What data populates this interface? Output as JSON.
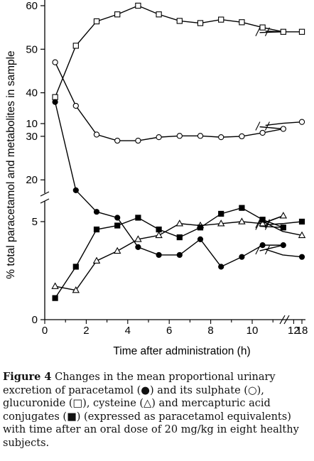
{
  "chart_data": {
    "type": "line",
    "xlabel": "Time after administration (h)",
    "ylabel": "% total paracetamol and metabolites in sample",
    "x_ticks": [
      "0",
      "2",
      "4",
      "6",
      "8",
      "10",
      "12",
      "18"
    ],
    "y_ticks_upper": [
      "20",
      "30",
      "40",
      "50",
      "60"
    ],
    "y_ticks_lower": [
      "0",
      "5",
      "10"
    ],
    "y_ranges": {
      "lower": [
        0,
        12
      ],
      "upper": [
        18,
        60
      ]
    },
    "x_axis_break": "between 12 and 18",
    "series": [
      {
        "key": "glucuronide",
        "marker": "open-square",
        "x": [
          0.5,
          1.5,
          2.5,
          3.5,
          4.5,
          5.5,
          6.5,
          7.5,
          8.5,
          9.5,
          10.5,
          11.5,
          17.5,
          18
        ],
        "y": [
          39,
          50.8,
          56.4,
          58,
          60,
          58,
          56.5,
          56,
          56.8,
          56.2,
          55,
          54,
          54,
          54
        ]
      },
      {
        "key": "sulphate",
        "marker": "open-circle",
        "x": [
          0.5,
          1.5,
          2.5,
          3.5,
          4.5,
          5.5,
          6.5,
          7.5,
          8.5,
          9.5,
          10.5,
          11.5,
          17.5,
          18
        ],
        "y": [
          47,
          37,
          30.4,
          29,
          29,
          29.8,
          30.1,
          30.1,
          29.8,
          30,
          30.8,
          31.7,
          33,
          33.3
        ]
      },
      {
        "key": "paracetamol",
        "marker": "filled-circle",
        "x": [
          0.5,
          1.5,
          2.5,
          3.5,
          4.5,
          5.5,
          6.5,
          7.5,
          8.5,
          9.5,
          10.5,
          11.5,
          17.5,
          18
        ],
        "y": [
          11.1,
          6.6,
          5.5,
          5.2,
          3.7,
          3.3,
          3.3,
          4.1,
          2.7,
          3.2,
          3.8,
          3.8,
          3.3,
          3.2
        ]
      },
      {
        "key": "cysteine",
        "marker": "open-triangle",
        "x": [
          0.5,
          1.5,
          2.5,
          3.5,
          4.5,
          5.5,
          6.5,
          7.5,
          8.5,
          9.5,
          10.5,
          11.5,
          17.5,
          18
        ],
        "y": [
          1.7,
          1.5,
          3.0,
          3.5,
          4.1,
          4.3,
          4.9,
          4.8,
          4.9,
          5.0,
          4.9,
          5.3,
          4.5,
          4.3
        ]
      },
      {
        "key": "mercapturic",
        "marker": "filled-square",
        "x": [
          0.5,
          1.5,
          2.5,
          3.5,
          4.5,
          5.5,
          6.5,
          7.5,
          8.5,
          9.5,
          10.5,
          11.5,
          17.5,
          18
        ],
        "y": [
          1.1,
          2.7,
          4.6,
          4.8,
          5.2,
          4.6,
          4.2,
          4.7,
          5.4,
          5.7,
          5.1,
          4.7,
          4.9,
          5.0
        ]
      }
    ]
  },
  "caption": {
    "figure_label": "Figure 4",
    "text": "Changes in the mean proportional urinary excretion of paracetamol (●) and its sulphate (○), glucuronide (□), cysteine (△) and mercapturic acid conjugates (■) (expressed as paracetamol equivalents) with time after an oral dose of 20 mg/kg in eight healthy subjects."
  }
}
